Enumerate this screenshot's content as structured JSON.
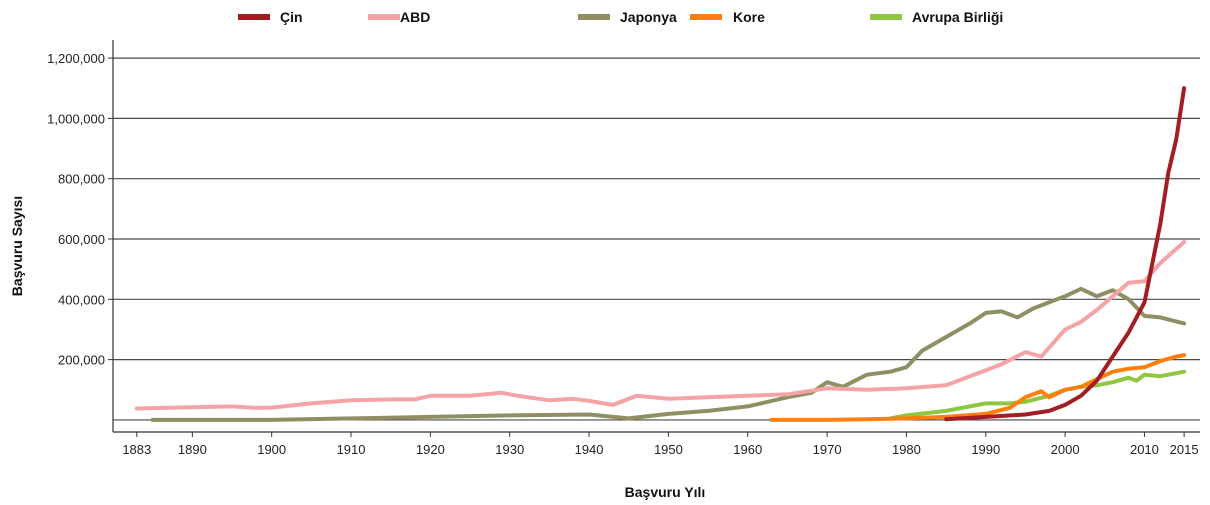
{
  "chart_data": {
    "type": "line",
    "title": "",
    "xlabel": "Başvuru Yılı",
    "ylabel": "Başvuru Sayısı",
    "xlim": [
      1880,
      2017
    ],
    "ylim": [
      -40000,
      1260000
    ],
    "x_ticks": [
      1883,
      1890,
      1900,
      1910,
      1920,
      1930,
      1940,
      1950,
      1960,
      1970,
      1980,
      1990,
      2000,
      2010,
      2015
    ],
    "y_ticks": [
      200000,
      400000,
      600000,
      800000,
      1000000,
      1200000
    ],
    "y_tick_labels": [
      "200,000",
      "400,000",
      "600,000",
      "800,000",
      "1,000,000",
      "1,200,000"
    ],
    "grid": "horizontal",
    "legend_position": "top",
    "series": [
      {
        "name": "Çin",
        "color": "#a31d22",
        "x": [
          1985,
          1990,
          1995,
          1998,
          2000,
          2002,
          2004,
          2006,
          2008,
          2010,
          2011,
          2012,
          2013,
          2014,
          2015
        ],
        "y": [
          2000,
          10000,
          18000,
          30000,
          50000,
          80000,
          130000,
          210000,
          290000,
          390000,
          520000,
          650000,
          820000,
          930000,
          1100000
        ]
      },
      {
        "name": "ABD",
        "color": "#f4a3a6",
        "x": [
          1883,
          1890,
          1895,
          1898,
          1900,
          1905,
          1910,
          1915,
          1918,
          1920,
          1925,
          1929,
          1931,
          1935,
          1938,
          1940,
          1943,
          1946,
          1950,
          1955,
          1960,
          1965,
          1970,
          1975,
          1980,
          1985,
          1990,
          1992,
          1995,
          1997,
          2000,
          2002,
          2004,
          2006,
          2008,
          2010,
          2012,
          2015
        ],
        "y": [
          38000,
          42000,
          45000,
          40000,
          41000,
          55000,
          65000,
          68000,
          68000,
          80000,
          80000,
          90000,
          80000,
          65000,
          70000,
          63000,
          50000,
          80000,
          70000,
          75000,
          80000,
          85000,
          105000,
          100000,
          105000,
          115000,
          165000,
          185000,
          225000,
          210000,
          300000,
          325000,
          365000,
          410000,
          455000,
          460000,
          520000,
          590000
        ]
      },
      {
        "name": "Japonya",
        "color": "#8f8f64",
        "x": [
          1885,
          1890,
          1900,
          1910,
          1920,
          1930,
          1940,
          1945,
          1950,
          1955,
          1960,
          1965,
          1968,
          1970,
          1972,
          1975,
          1978,
          1980,
          1982,
          1985,
          1988,
          1990,
          1992,
          1994,
          1996,
          1998,
          2000,
          2002,
          2004,
          2006,
          2008,
          2010,
          2012,
          2015
        ],
        "y": [
          0,
          0,
          0,
          5000,
          10000,
          15000,
          18000,
          5000,
          20000,
          30000,
          45000,
          75000,
          90000,
          125000,
          110000,
          150000,
          160000,
          175000,
          230000,
          275000,
          320000,
          355000,
          360000,
          340000,
          370000,
          390000,
          410000,
          435000,
          410000,
          430000,
          400000,
          345000,
          340000,
          320000
        ]
      },
      {
        "name": "Kore",
        "color": "#ff7f0e",
        "x": [
          1963,
          1970,
          1975,
          1980,
          1985,
          1990,
          1993,
          1995,
          1997,
          1998,
          2000,
          2002,
          2004,
          2006,
          2008,
          2010,
          2012,
          2014,
          2015
        ],
        "y": [
          0,
          0,
          2000,
          5000,
          10000,
          20000,
          40000,
          75000,
          95000,
          75000,
          100000,
          110000,
          135000,
          160000,
          170000,
          175000,
          195000,
          210000,
          215000
        ]
      },
      {
        "name": "Avrupa Birliği",
        "color": "#8fc740",
        "x": [
          1978,
          1980,
          1985,
          1990,
          1993,
          1995,
          1998,
          2000,
          2002,
          2004,
          2006,
          2008,
          2009,
          2010,
          2012,
          2013,
          2015
        ],
        "y": [
          5000,
          15000,
          30000,
          55000,
          55000,
          60000,
          80000,
          100000,
          110000,
          115000,
          125000,
          140000,
          130000,
          150000,
          145000,
          150000,
          160000
        ]
      }
    ]
  }
}
